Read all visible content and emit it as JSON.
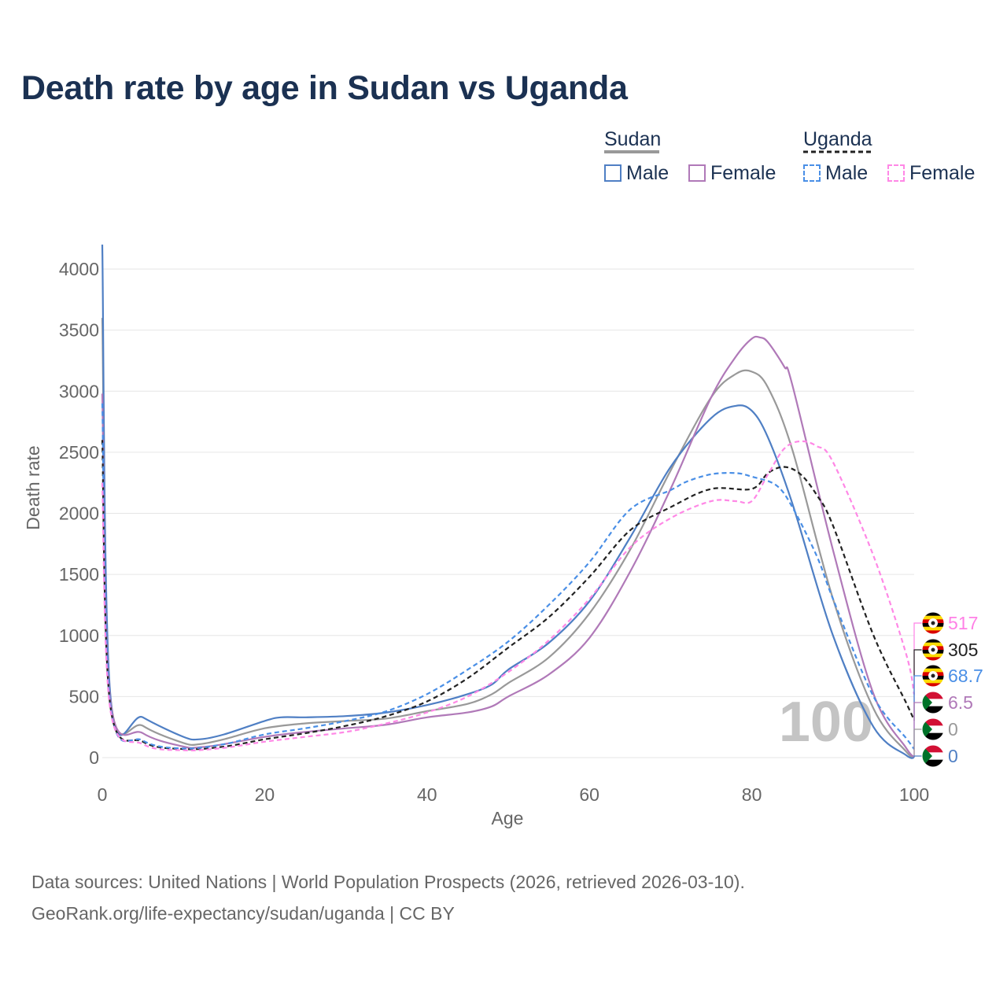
{
  "title": "Death rate by age in Sudan vs Uganda",
  "legend": {
    "groups": [
      {
        "name": "Sudan",
        "line_color": "#999999",
        "line_style": "solid",
        "items": [
          {
            "label": "Male",
            "color": "#4f7fc4",
            "style": "solid"
          },
          {
            "label": "Female",
            "color": "#b079b8",
            "style": "solid"
          }
        ]
      },
      {
        "name": "Uganda",
        "line_color": "#222222",
        "line_style": "dashed",
        "items": [
          {
            "label": "Male",
            "color": "#4a8fe6",
            "style": "dashed"
          },
          {
            "label": "Female",
            "color": "#ff88e6",
            "style": "dashed"
          }
        ]
      }
    ]
  },
  "year_watermark": "100",
  "end_labels": [
    {
      "value": "517",
      "color": "#ff80e6",
      "flag": "uganda"
    },
    {
      "value": "305",
      "color": "#222222",
      "flag": "uganda"
    },
    {
      "value": "68.7",
      "color": "#4a8fe6",
      "flag": "uganda"
    },
    {
      "value": "6.5",
      "color": "#b079b8",
      "flag": "sudan"
    },
    {
      "value": "0",
      "color": "#999999",
      "flag": "sudan"
    },
    {
      "value": "0",
      "color": "#4f7fc4",
      "flag": "sudan"
    }
  ],
  "footer": {
    "line1": "Data sources: United Nations | World Population Prospects (2026, retrieved 2026-03-10).",
    "line2": "GeoRank.org/life-expectancy/sudan/uganda | CC BY"
  },
  "chart_data": {
    "type": "line",
    "title": "Death rate by age in Sudan vs Uganda",
    "xlabel": "Age",
    "ylabel": "Death rate",
    "xlim": [
      0,
      100
    ],
    "ylim": [
      0,
      4200
    ],
    "xticks": [
      0,
      20,
      40,
      60,
      80,
      100
    ],
    "yticks": [
      0,
      500,
      1000,
      1500,
      2000,
      2500,
      3000,
      3500,
      4000
    ],
    "grid": true,
    "series": [
      {
        "name": "Sudan (total)",
        "color": "#999999",
        "style": "solid",
        "x": [
          0,
          1,
          5,
          10,
          12,
          15,
          20,
          25,
          30,
          35,
          40,
          45,
          48,
          50,
          55,
          60,
          65,
          70,
          75,
          78,
          80,
          82,
          85,
          90,
          95,
          99,
          100
        ],
        "y": [
          3600,
          500,
          260,
          120,
          110,
          150,
          240,
          280,
          300,
          320,
          380,
          440,
          520,
          610,
          820,
          1180,
          1700,
          2350,
          2950,
          3140,
          3160,
          3030,
          2520,
          1300,
          400,
          50,
          0
        ]
      },
      {
        "name": "Sudan Male",
        "color": "#4f7fc4",
        "style": "solid",
        "x": [
          0,
          1,
          5,
          10,
          12,
          15,
          20,
          22,
          25,
          30,
          35,
          40,
          45,
          48,
          50,
          55,
          60,
          65,
          70,
          75,
          78,
          80,
          82,
          85,
          90,
          95,
          99,
          100
        ],
        "y": [
          4200,
          510,
          330,
          170,
          150,
          190,
          300,
          330,
          330,
          340,
          370,
          430,
          520,
          600,
          720,
          940,
          1280,
          1800,
          2380,
          2780,
          2880,
          2840,
          2620,
          2080,
          1000,
          250,
          20,
          0
        ]
      },
      {
        "name": "Sudan Female",
        "color": "#b079b8",
        "style": "solid",
        "x": [
          0,
          1,
          5,
          10,
          12,
          15,
          20,
          25,
          30,
          35,
          40,
          45,
          48,
          50,
          55,
          60,
          65,
          70,
          75,
          78,
          80,
          81,
          82,
          84,
          85,
          90,
          95,
          99,
          100
        ],
        "y": [
          2980,
          470,
          200,
          90,
          85,
          110,
          170,
          210,
          240,
          270,
          330,
          370,
          420,
          500,
          680,
          980,
          1520,
          2200,
          2950,
          3280,
          3430,
          3440,
          3400,
          3200,
          3050,
          1700,
          520,
          80,
          6.5
        ]
      },
      {
        "name": "Uganda (total)",
        "color": "#222222",
        "style": "dashed",
        "x": [
          0,
          1,
          5,
          10,
          15,
          20,
          25,
          30,
          35,
          40,
          45,
          50,
          55,
          60,
          65,
          70,
          75,
          80,
          82,
          84,
          86,
          88,
          90,
          95,
          99,
          100
        ],
        "y": [
          2600,
          420,
          130,
          70,
          90,
          150,
          200,
          260,
          340,
          460,
          650,
          900,
          1150,
          1480,
          1860,
          2050,
          2200,
          2200,
          2330,
          2380,
          2320,
          2150,
          1900,
          1000,
          450,
          305
        ]
      },
      {
        "name": "Uganda Male",
        "color": "#4a8fe6",
        "style": "dashed",
        "x": [
          0,
          1,
          5,
          10,
          15,
          20,
          25,
          30,
          35,
          40,
          45,
          50,
          55,
          60,
          65,
          70,
          72,
          75,
          78,
          80,
          83,
          85,
          88,
          90,
          95,
          99,
          100
        ],
        "y": [
          2900,
          430,
          140,
          75,
          110,
          190,
          240,
          300,
          380,
          520,
          720,
          950,
          1250,
          1600,
          2030,
          2190,
          2260,
          2320,
          2330,
          2300,
          2230,
          2050,
          1650,
          1300,
          500,
          160,
          68.7
        ]
      },
      {
        "name": "Uganda Female",
        "color": "#ff88e6",
        "style": "dashed",
        "x": [
          0,
          1,
          5,
          10,
          15,
          20,
          25,
          30,
          35,
          40,
          45,
          50,
          55,
          60,
          65,
          70,
          75,
          78,
          80,
          82,
          84,
          86,
          88,
          90,
          95,
          99,
          100
        ],
        "y": [
          2250,
          390,
          110,
          60,
          80,
          130,
          170,
          210,
          280,
          370,
          500,
          700,
          960,
          1300,
          1720,
          1960,
          2100,
          2100,
          2100,
          2320,
          2530,
          2590,
          2550,
          2420,
          1650,
          850,
          517
        ]
      }
    ]
  }
}
